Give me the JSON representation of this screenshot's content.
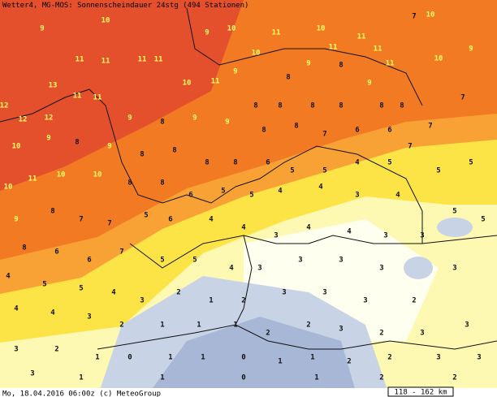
{
  "header": {
    "title": "Wetter4, MG-MOS: Sonnenscheindauer 24stg (494 Stationen)"
  },
  "footer": {
    "timestamp": "Mo, 18.04.2016 06:00z (c) MeteoGroup",
    "scale": "118 - 162 km"
  },
  "stations": [
    9,
    10,
    11,
    11,
    11,
    11,
    13,
    12,
    12,
    12,
    11,
    11,
    10,
    11,
    9,
    10,
    11,
    9,
    10,
    10,
    11,
    11,
    11,
    11,
    10,
    9,
    7,
    10,
    7,
    7,
    8,
    9,
    8,
    9,
    8,
    8,
    8,
    8,
    8,
    8,
    9,
    8,
    9,
    9,
    8,
    8,
    7,
    6,
    6,
    7,
    10,
    9,
    8,
    9,
    8,
    8,
    8,
    8,
    6,
    5,
    5,
    4,
    5,
    5,
    5,
    10,
    11,
    10,
    10,
    8,
    8,
    6,
    5,
    5,
    4,
    4,
    3,
    4,
    5,
    5,
    9,
    8,
    7,
    7,
    5,
    6,
    4,
    4,
    3,
    4,
    4,
    3,
    3,
    8,
    6,
    6,
    7,
    5,
    5,
    4,
    3,
    3,
    3,
    3,
    3,
    4,
    5,
    5,
    4,
    3,
    2,
    1,
    2,
    3,
    3,
    3,
    2,
    4,
    4,
    3,
    2,
    1,
    1,
    1,
    2,
    2,
    3,
    2,
    3,
    3,
    3,
    2,
    1,
    0,
    1,
    1,
    0,
    1,
    1,
    2,
    2,
    3,
    3,
    3,
    1,
    1,
    0,
    1,
    2,
    2
  ]
}
